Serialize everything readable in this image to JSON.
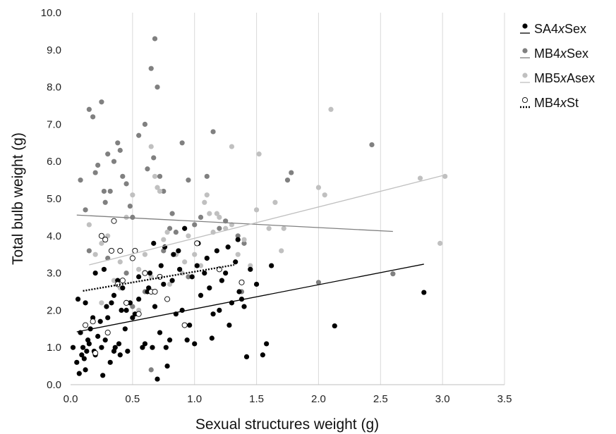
{
  "chart_data": {
    "type": "scatter",
    "xlabel": "Sexual structures weight (g)",
    "ylabel": "Total bulb weight (g)",
    "xlim": [
      0,
      3.5
    ],
    "ylim": [
      0,
      10
    ],
    "x_ticks": [
      "0.0",
      "0.5",
      "1.0",
      "1.5",
      "2.0",
      "2.5",
      "3.0",
      "3.5"
    ],
    "y_ticks": [
      "0.0",
      "1.0",
      "2.0",
      "3.0",
      "4.0",
      "5.0",
      "6.0",
      "7.0",
      "8.0",
      "9.0",
      "10.0"
    ],
    "grid": "vertical",
    "legend_position": "right",
    "series": [
      {
        "name": "SA4xSex",
        "prefix": "SA4",
        "suffix": "Sex",
        "marker": "filled",
        "color": "#000000",
        "trend": {
          "x": [
            0.05,
            2.85
          ],
          "y": [
            1.42,
            3.24
          ],
          "style": "solid"
        },
        "points": [
          [
            0.02,
            1.0
          ],
          [
            0.05,
            0.6
          ],
          [
            0.07,
            0.3
          ],
          [
            0.08,
            1.4
          ],
          [
            0.09,
            0.8
          ],
          [
            0.1,
            1.0
          ],
          [
            0.11,
            0.7
          ],
          [
            0.12,
            0.4
          ],
          [
            0.13,
            0.9
          ],
          [
            0.14,
            1.2
          ],
          [
            0.15,
            1.1
          ],
          [
            0.16,
            1.5
          ],
          [
            0.18,
            1.8
          ],
          [
            0.19,
            0.9
          ],
          [
            0.2,
            0.8
          ],
          [
            0.22,
            1.3
          ],
          [
            0.24,
            1.7
          ],
          [
            0.25,
            1.0
          ],
          [
            0.26,
            0.25
          ],
          [
            0.28,
            1.2
          ],
          [
            0.29,
            2.1
          ],
          [
            0.3,
            1.8
          ],
          [
            0.32,
            0.6
          ],
          [
            0.33,
            2.2
          ],
          [
            0.35,
            0.9
          ],
          [
            0.36,
            1.0
          ],
          [
            0.38,
            2.8
          ],
          [
            0.39,
            1.1
          ],
          [
            0.4,
            0.8
          ],
          [
            0.41,
            2.0
          ],
          [
            0.42,
            2.6
          ],
          [
            0.44,
            1.5
          ],
          [
            0.46,
            0.9
          ],
          [
            0.48,
            2.2
          ],
          [
            0.5,
            1.8
          ],
          [
            0.52,
            1.9
          ],
          [
            0.55,
            2.3
          ],
          [
            0.58,
            1.0
          ],
          [
            0.6,
            1.1
          ],
          [
            0.62,
            2.5
          ],
          [
            0.64,
            3.0
          ],
          [
            0.66,
            1.0
          ],
          [
            0.68,
            2.1
          ],
          [
            0.7,
            0.15
          ],
          [
            0.72,
            1.4
          ],
          [
            0.73,
            3.2
          ],
          [
            0.75,
            2.7
          ],
          [
            0.77,
            1.0
          ],
          [
            0.78,
            0.5
          ],
          [
            0.8,
            1.2
          ],
          [
            0.82,
            2.8
          ],
          [
            0.83,
            3.5
          ],
          [
            0.85,
            1.9
          ],
          [
            0.87,
            3.6
          ],
          [
            0.9,
            2.0
          ],
          [
            0.92,
            4.2
          ],
          [
            0.94,
            1.2
          ],
          [
            0.96,
            1.6
          ],
          [
            0.98,
            2.9
          ],
          [
            1.0,
            1.1
          ],
          [
            1.02,
            3.2
          ],
          [
            1.05,
            2.4
          ],
          [
            1.08,
            3.0
          ],
          [
            1.1,
            3.4
          ],
          [
            1.12,
            2.6
          ],
          [
            1.15,
            1.9
          ],
          [
            1.18,
            3.6
          ],
          [
            1.2,
            2.0
          ],
          [
            1.22,
            2.8
          ],
          [
            1.25,
            3.0
          ],
          [
            1.28,
            1.6
          ],
          [
            1.3,
            2.2
          ],
          [
            1.33,
            3.3
          ],
          [
            1.36,
            2.5
          ],
          [
            1.38,
            2.3
          ],
          [
            1.4,
            2.1
          ],
          [
            1.42,
            0.75
          ],
          [
            1.45,
            3.1
          ],
          [
            1.5,
            2.7
          ],
          [
            1.55,
            0.8
          ],
          [
            1.58,
            1.1
          ],
          [
            1.62,
            3.2
          ],
          [
            2.13,
            1.58
          ],
          [
            2.85,
            2.48
          ],
          [
            0.06,
            2.3
          ],
          [
            0.12,
            2.2
          ],
          [
            0.2,
            3.0
          ],
          [
            0.27,
            3.1
          ],
          [
            0.35,
            2.4
          ],
          [
            0.45,
            2.0
          ],
          [
            0.55,
            2.9
          ],
          [
            0.63,
            2.6
          ],
          [
            0.67,
            3.8
          ],
          [
            0.76,
            3.7
          ],
          [
            0.88,
            3.1
          ],
          [
            1.03,
            3.8
          ],
          [
            1.14,
            1.25
          ],
          [
            1.27,
            3.7
          ],
          [
            1.35,
            3.9
          ]
        ]
      },
      {
        "name": "MB4xSex",
        "prefix": "MB4",
        "suffix": "Sex",
        "marker": "filled",
        "color": "#808080",
        "trend": {
          "x": [
            0.05,
            2.6
          ],
          "y": [
            4.56,
            4.12
          ],
          "style": "solid"
        },
        "points": [
          [
            0.08,
            5.5
          ],
          [
            0.12,
            4.7
          ],
          [
            0.15,
            7.4
          ],
          [
            0.18,
            7.2
          ],
          [
            0.2,
            5.7
          ],
          [
            0.22,
            5.9
          ],
          [
            0.25,
            7.6
          ],
          [
            0.27,
            5.2
          ],
          [
            0.28,
            4.9
          ],
          [
            0.3,
            6.2
          ],
          [
            0.32,
            5.2
          ],
          [
            0.35,
            6.0
          ],
          [
            0.38,
            6.5
          ],
          [
            0.4,
            6.3
          ],
          [
            0.42,
            5.6
          ],
          [
            0.45,
            5.4
          ],
          [
            0.48,
            4.8
          ],
          [
            0.5,
            4.5
          ],
          [
            0.55,
            6.7
          ],
          [
            0.6,
            7.0
          ],
          [
            0.62,
            5.8
          ],
          [
            0.65,
            8.5
          ],
          [
            0.67,
            6.1
          ],
          [
            0.68,
            9.3
          ],
          [
            0.7,
            8.0
          ],
          [
            0.72,
            5.6
          ],
          [
            0.75,
            5.2
          ],
          [
            0.8,
            4.2
          ],
          [
            0.82,
            4.6
          ],
          [
            0.85,
            4.1
          ],
          [
            0.9,
            6.5
          ],
          [
            0.95,
            5.5
          ],
          [
            1.0,
            4.3
          ],
          [
            1.05,
            4.5
          ],
          [
            1.1,
            5.6
          ],
          [
            1.15,
            6.8
          ],
          [
            1.2,
            4.2
          ],
          [
            1.25,
            4.4
          ],
          [
            1.35,
            4.0
          ],
          [
            1.4,
            3.8
          ],
          [
            1.75,
            5.5
          ],
          [
            1.78,
            5.7
          ],
          [
            2.0,
            2.75
          ],
          [
            2.43,
            6.45
          ],
          [
            2.6,
            2.98
          ],
          [
            0.15,
            3.6
          ],
          [
            0.3,
            3.4
          ],
          [
            0.45,
            3.0
          ],
          [
            0.5,
            2.1
          ],
          [
            0.6,
            2.5
          ],
          [
            0.65,
            0.4
          ],
          [
            0.75,
            3.6
          ],
          [
            0.85,
            3.5
          ],
          [
            0.95,
            2.9
          ],
          [
            1.1,
            3.4
          ],
          [
            1.2,
            3.1
          ],
          [
            1.38,
            2.5
          ]
        ]
      },
      {
        "name": "MB5xAsex",
        "prefix": "MB5",
        "suffix": "Asex",
        "marker": "filled",
        "color": "#c0c0c0",
        "trend": {
          "x": [
            0.15,
            3.0
          ],
          "y": [
            3.22,
            5.62
          ],
          "style": "solid"
        },
        "points": [
          [
            0.15,
            4.3
          ],
          [
            0.2,
            3.5
          ],
          [
            0.25,
            3.8
          ],
          [
            0.3,
            4.0
          ],
          [
            0.35,
            2.8
          ],
          [
            0.4,
            3.3
          ],
          [
            0.45,
            4.5
          ],
          [
            0.5,
            5.1
          ],
          [
            0.55,
            3.1
          ],
          [
            0.6,
            3.5
          ],
          [
            0.65,
            6.4
          ],
          [
            0.68,
            5.6
          ],
          [
            0.7,
            5.3
          ],
          [
            0.72,
            5.2
          ],
          [
            0.75,
            3.9
          ],
          [
            0.8,
            2.7
          ],
          [
            0.85,
            3.5
          ],
          [
            0.9,
            3.0
          ],
          [
            0.95,
            4.0
          ],
          [
            1.0,
            3.5
          ],
          [
            1.05,
            3.2
          ],
          [
            1.08,
            4.9
          ],
          [
            1.1,
            5.1
          ],
          [
            1.12,
            4.6
          ],
          [
            1.15,
            4.1
          ],
          [
            1.2,
            4.5
          ],
          [
            1.25,
            4.2
          ],
          [
            1.3,
            6.4
          ],
          [
            1.35,
            3.5
          ],
          [
            1.4,
            3.9
          ],
          [
            1.45,
            3.2
          ],
          [
            1.5,
            4.7
          ],
          [
            1.52,
            6.2
          ],
          [
            1.6,
            4.2
          ],
          [
            1.65,
            4.9
          ],
          [
            1.7,
            3.6
          ],
          [
            1.72,
            4.2
          ],
          [
            2.0,
            5.3
          ],
          [
            2.05,
            5.1
          ],
          [
            2.1,
            7.4
          ],
          [
            2.82,
            5.55
          ],
          [
            2.98,
            3.8
          ],
          [
            3.02,
            5.6
          ],
          [
            0.25,
            2.2
          ],
          [
            0.4,
            2.6
          ],
          [
            0.55,
            2.0
          ],
          [
            0.65,
            2.9
          ],
          [
            0.78,
            4.1
          ],
          [
            0.92,
            3.3
          ],
          [
            1.18,
            4.6
          ],
          [
            1.3,
            4.3
          ]
        ]
      },
      {
        "name": "MB4xSt",
        "prefix": "MB4",
        "suffix": "St",
        "marker": "open",
        "color": "#000000",
        "trend": {
          "x": [
            0.1,
            1.32
          ],
          "y": [
            2.52,
            3.22
          ],
          "style": "dotted"
        },
        "points": [
          [
            0.12,
            1.6
          ],
          [
            0.18,
            1.7
          ],
          [
            0.2,
            0.85
          ],
          [
            0.25,
            4.0
          ],
          [
            0.28,
            3.9
          ],
          [
            0.3,
            1.4
          ],
          [
            0.33,
            3.6
          ],
          [
            0.35,
            4.4
          ],
          [
            0.38,
            2.7
          ],
          [
            0.4,
            3.6
          ],
          [
            0.42,
            2.8
          ],
          [
            0.45,
            2.2
          ],
          [
            0.5,
            3.4
          ],
          [
            0.52,
            3.6
          ],
          [
            0.55,
            1.9
          ],
          [
            0.6,
            3.0
          ],
          [
            0.65,
            2.5
          ],
          [
            0.68,
            2.5
          ],
          [
            0.72,
            2.9
          ],
          [
            0.78,
            2.3
          ],
          [
            0.92,
            1.6
          ],
          [
            1.02,
            3.8
          ],
          [
            1.2,
            3.1
          ],
          [
            1.38,
            2.75
          ]
        ]
      }
    ]
  }
}
